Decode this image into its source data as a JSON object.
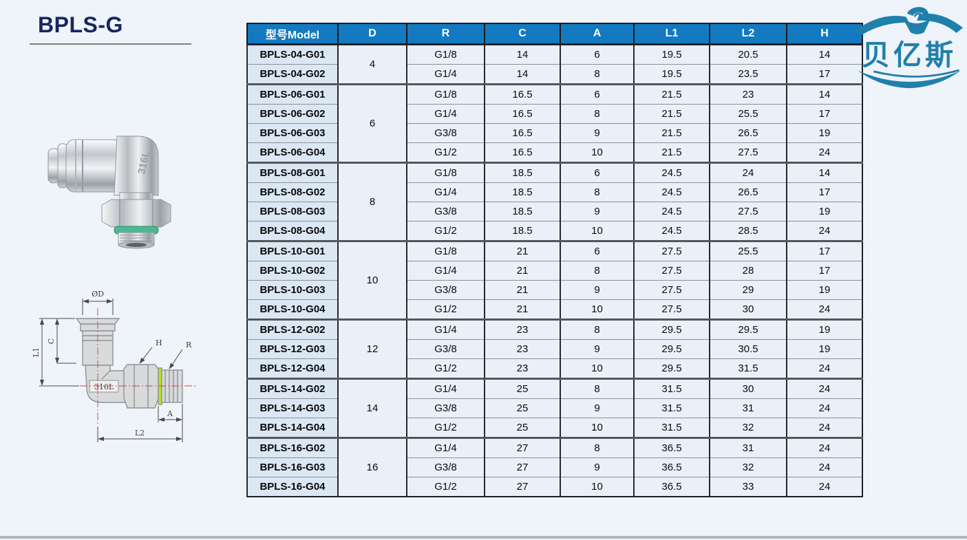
{
  "page": {
    "title": "BPLS-G"
  },
  "brand": {
    "name": "贝亿斯",
    "color": "#2080ac"
  },
  "photo": {
    "engraving": "316L",
    "seal_color": "#4db892"
  },
  "drawing": {
    "labels": {
      "diameter": "ØD",
      "c": "C",
      "l1": "L1",
      "h": "H",
      "r": "R",
      "a": "A",
      "l2": "L2",
      "material": "316L"
    },
    "seal_color": "#b5e61d",
    "centerline_color": "#e53935"
  },
  "colors": {
    "header_bg": "#137ac1",
    "header_text": "#ffffff",
    "title_text": "#17265f",
    "model_cell_bg": "#dbe7f3",
    "data_cell_bg": "#eaf0f8",
    "page_bg": "#eff3fa"
  },
  "table": {
    "headers": [
      "型号Model",
      "D",
      "R",
      "C",
      "A",
      "L1",
      "L2",
      "H"
    ],
    "groups": [
      {
        "d": "4",
        "rows": [
          [
            "BPLS-04-G01",
            "G1/8",
            "14",
            "6",
            "19.5",
            "20.5",
            "14"
          ],
          [
            "BPLS-04-G02",
            "G1/4",
            "14",
            "8",
            "19.5",
            "23.5",
            "17"
          ]
        ]
      },
      {
        "d": "6",
        "rows": [
          [
            "BPLS-06-G01",
            "G1/8",
            "16.5",
            "6",
            "21.5",
            "23",
            "14"
          ],
          [
            "BPLS-06-G02",
            "G1/4",
            "16.5",
            "8",
            "21.5",
            "25.5",
            "17"
          ],
          [
            "BPLS-06-G03",
            "G3/8",
            "16.5",
            "9",
            "21.5",
            "26.5",
            "19"
          ],
          [
            "BPLS-06-G04",
            "G1/2",
            "16.5",
            "10",
            "21.5",
            "27.5",
            "24"
          ]
        ]
      },
      {
        "d": "8",
        "rows": [
          [
            "BPLS-08-G01",
            "G1/8",
            "18.5",
            "6",
            "24.5",
            "24",
            "14"
          ],
          [
            "BPLS-08-G02",
            "G1/4",
            "18.5",
            "8",
            "24.5",
            "26.5",
            "17"
          ],
          [
            "BPLS-08-G03",
            "G3/8",
            "18.5",
            "9",
            "24.5",
            "27.5",
            "19"
          ],
          [
            "BPLS-08-G04",
            "G1/2",
            "18.5",
            "10",
            "24.5",
            "28.5",
            "24"
          ]
        ]
      },
      {
        "d": "10",
        "rows": [
          [
            "BPLS-10-G01",
            "G1/8",
            "21",
            "6",
            "27.5",
            "25.5",
            "17"
          ],
          [
            "BPLS-10-G02",
            "G1/4",
            "21",
            "8",
            "27.5",
            "28",
            "17"
          ],
          [
            "BPLS-10-G03",
            "G3/8",
            "21",
            "9",
            "27.5",
            "29",
            "19"
          ],
          [
            "BPLS-10-G04",
            "G1/2",
            "21",
            "10",
            "27.5",
            "30",
            "24"
          ]
        ]
      },
      {
        "d": "12",
        "rows": [
          [
            "BPLS-12-G02",
            "G1/4",
            "23",
            "8",
            "29.5",
            "29.5",
            "19"
          ],
          [
            "BPLS-12-G03",
            "G3/8",
            "23",
            "9",
            "29.5",
            "30.5",
            "19"
          ],
          [
            "BPLS-12-G04",
            "G1/2",
            "23",
            "10",
            "29.5",
            "31.5",
            "24"
          ]
        ]
      },
      {
        "d": "14",
        "rows": [
          [
            "BPLS-14-G02",
            "G1/4",
            "25",
            "8",
            "31.5",
            "30",
            "24"
          ],
          [
            "BPLS-14-G03",
            "G3/8",
            "25",
            "9",
            "31.5",
            "31",
            "24"
          ],
          [
            "BPLS-14-G04",
            "G1/2",
            "25",
            "10",
            "31.5",
            "32",
            "24"
          ]
        ]
      },
      {
        "d": "16",
        "rows": [
          [
            "BPLS-16-G02",
            "G1/4",
            "27",
            "8",
            "36.5",
            "31",
            "24"
          ],
          [
            "BPLS-16-G03",
            "G3/8",
            "27",
            "9",
            "36.5",
            "32",
            "24"
          ],
          [
            "BPLS-16-G04",
            "G1/2",
            "27",
            "10",
            "36.5",
            "33",
            "24"
          ]
        ]
      }
    ]
  }
}
